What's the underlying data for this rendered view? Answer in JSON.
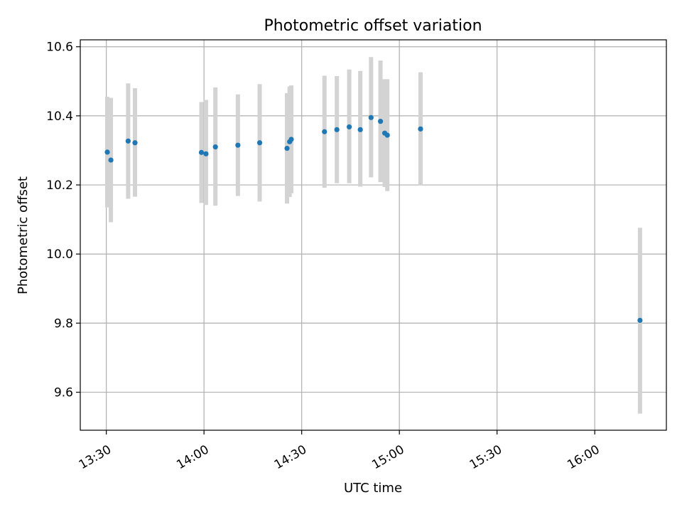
{
  "chart_data": {
    "type": "scatter",
    "title": "Photometric offset variation",
    "xlabel": "UTC time",
    "ylabel": "Photometric offset",
    "x_ticks": [
      "13:30",
      "14:00",
      "14:30",
      "15:00",
      "15:30",
      "16:00"
    ],
    "x_tick_minutes": [
      810,
      840,
      870,
      900,
      930,
      960
    ],
    "y_ticks": [
      "9.6",
      "9.8",
      "10.0",
      "10.2",
      "10.4",
      "10.6"
    ],
    "y_tick_values": [
      9.6,
      9.8,
      10.0,
      10.2,
      10.4,
      10.6
    ],
    "xlim_minutes": [
      802,
      982
    ],
    "ylim": [
      9.49,
      10.62
    ],
    "grid": true,
    "colors": {
      "point": "#1f77b4",
      "errorbar": "#d3d3d3",
      "grid": "#b0b0b0"
    },
    "points": [
      {
        "t": 810.3,
        "y": 10.295,
        "lo": 10.135,
        "hi": 10.455
      },
      {
        "t": 811.4,
        "y": 10.272,
        "lo": 10.092,
        "hi": 10.452
      },
      {
        "t": 816.7,
        "y": 10.327,
        "lo": 10.16,
        "hi": 10.494
      },
      {
        "t": 818.8,
        "y": 10.322,
        "lo": 10.166,
        "hi": 10.48
      },
      {
        "t": 839.2,
        "y": 10.294,
        "lo": 10.148,
        "hi": 10.44
      },
      {
        "t": 840.6,
        "y": 10.29,
        "lo": 10.142,
        "hi": 10.446
      },
      {
        "t": 843.5,
        "y": 10.31,
        "lo": 10.14,
        "hi": 10.482
      },
      {
        "t": 850.4,
        "y": 10.315,
        "lo": 10.168,
        "hi": 10.462
      },
      {
        "t": 857.1,
        "y": 10.322,
        "lo": 10.152,
        "hi": 10.492
      },
      {
        "t": 865.5,
        "y": 10.306,
        "lo": 10.146,
        "hi": 10.466
      },
      {
        "t": 866.3,
        "y": 10.325,
        "lo": 10.165,
        "hi": 10.485
      },
      {
        "t": 866.8,
        "y": 10.332,
        "lo": 10.176,
        "hi": 10.488
      },
      {
        "t": 877.0,
        "y": 10.354,
        "lo": 10.192,
        "hi": 10.516
      },
      {
        "t": 880.8,
        "y": 10.36,
        "lo": 10.205,
        "hi": 10.515
      },
      {
        "t": 884.6,
        "y": 10.368,
        "lo": 10.205,
        "hi": 10.534
      },
      {
        "t": 888.0,
        "y": 10.36,
        "lo": 10.195,
        "hi": 10.53
      },
      {
        "t": 891.3,
        "y": 10.395,
        "lo": 10.222,
        "hi": 10.57
      },
      {
        "t": 894.2,
        "y": 10.384,
        "lo": 10.208,
        "hi": 10.56
      },
      {
        "t": 895.5,
        "y": 10.35,
        "lo": 10.194,
        "hi": 10.506
      },
      {
        "t": 896.3,
        "y": 10.344,
        "lo": 10.182,
        "hi": 10.506
      },
      {
        "t": 906.5,
        "y": 10.362,
        "lo": 10.198,
        "hi": 10.526
      },
      {
        "t": 973.9,
        "y": 9.808,
        "lo": 9.538,
        "hi": 10.076
      }
    ]
  }
}
